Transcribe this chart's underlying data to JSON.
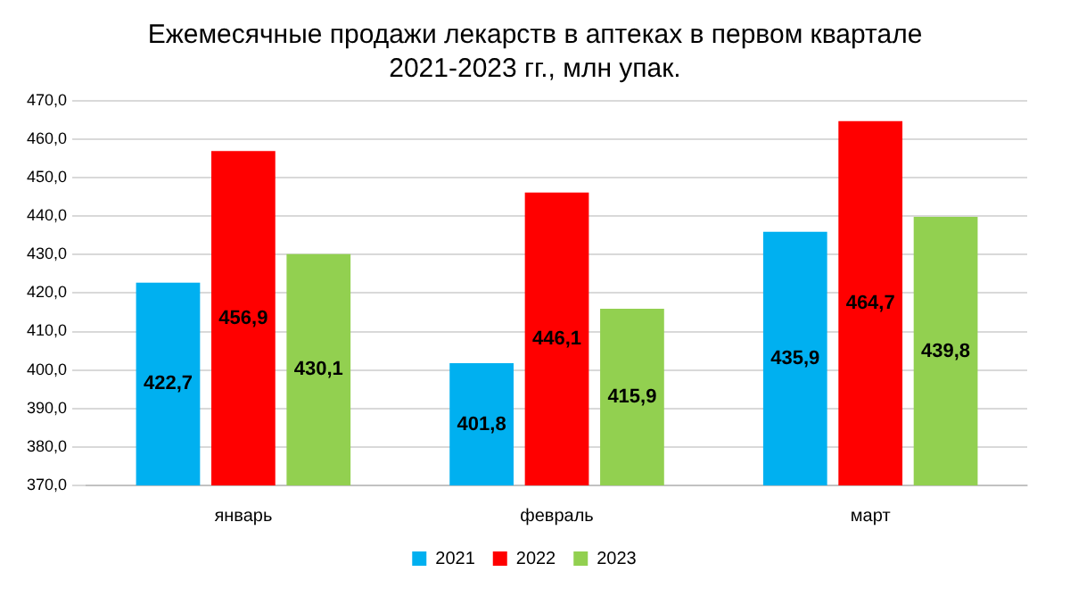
{
  "chart_data": {
    "type": "bar",
    "title": "Ежемесячные продажи лекарств в аптеках в первом квартале 2021-2023 гг., млн упак.",
    "categories": [
      "январь",
      "февраль",
      "март"
    ],
    "series": [
      {
        "name": "2021",
        "color": "#00b0f0",
        "values": [
          422.7,
          401.8,
          435.9
        ],
        "value_labels": [
          "422,7",
          "401,8",
          "435,9"
        ]
      },
      {
        "name": "2022",
        "color": "#ff0000",
        "values": [
          456.9,
          446.1,
          464.7
        ],
        "value_labels": [
          "456,9",
          "446,1",
          "464,7"
        ]
      },
      {
        "name": "2023",
        "color": "#92d050",
        "values": [
          430.1,
          415.9,
          439.8
        ],
        "value_labels": [
          "430,1",
          "415,9",
          "439,8"
        ]
      }
    ],
    "ylim": [
      370,
      470
    ],
    "yticks": [
      {
        "value": 370,
        "label": "370,0"
      },
      {
        "value": 380,
        "label": "380,0"
      },
      {
        "value": 390,
        "label": "390,0"
      },
      {
        "value": 400,
        "label": "400,0"
      },
      {
        "value": 410,
        "label": "410,0"
      },
      {
        "value": 420,
        "label": "420,0"
      },
      {
        "value": 430,
        "label": "430,0"
      },
      {
        "value": 440,
        "label": "440,0"
      },
      {
        "value": 450,
        "label": "450,0"
      },
      {
        "value": 460,
        "label": "460,0"
      },
      {
        "value": 470,
        "label": "470,0"
      }
    ],
    "grid": "y",
    "legend": "bottom"
  }
}
